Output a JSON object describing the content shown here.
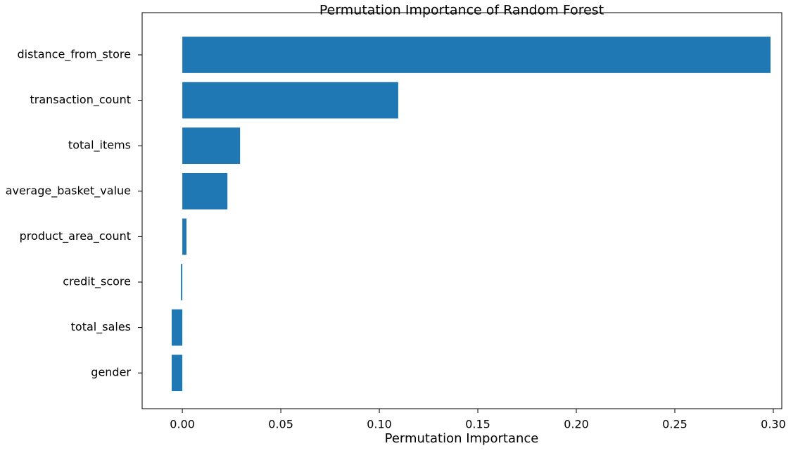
{
  "chart_data": {
    "type": "barh",
    "title": "Permutation Importance of Random Forest",
    "x_label": "Permutation Importance",
    "categories": [
      "distance_from_store",
      "transaction_count",
      "total_items",
      "average_basket_value",
      "product_area_count",
      "credit_score",
      "total_sales",
      "gender"
    ],
    "values": [
      0.2986,
      0.1096,
      0.0293,
      0.0229,
      0.0021,
      -0.0007,
      -0.0054,
      -0.0054
    ],
    "color": "#1f77b4",
    "xlim": [
      -0.0204,
      0.3043
    ],
    "xticks": [
      {
        "value": 0,
        "label": "0.00"
      },
      {
        "value": 0.05,
        "label": "0.05"
      },
      {
        "value": 0.1,
        "label": "0.10"
      },
      {
        "value": 0.15,
        "label": "0.15"
      },
      {
        "value": 0.2,
        "label": "0.20"
      },
      {
        "value": 0.25,
        "label": "0.25"
      },
      {
        "value": 0.3,
        "label": "0.30"
      }
    ]
  }
}
